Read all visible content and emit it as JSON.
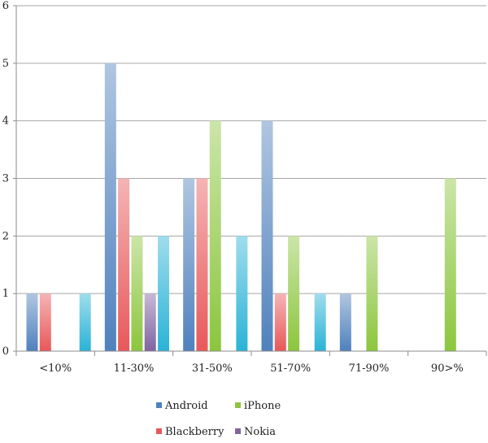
{
  "chart_data": {
    "type": "bar",
    "title": "",
    "xlabel": "",
    "ylabel": "",
    "ylim": [
      0,
      6
    ],
    "yticks": [
      0,
      1,
      2,
      3,
      4,
      5,
      6
    ],
    "grid": true,
    "legend_position": "bottom",
    "categories": [
      "<10%",
      "11-30%",
      "31-50%",
      "51-70%",
      "71-90%",
      "90>%"
    ],
    "series": [
      {
        "name": "Android",
        "color": "#4f81bd",
        "values": [
          1,
          5,
          3,
          4,
          1,
          0
        ]
      },
      {
        "name": "Blackberry",
        "color": "#e8585a",
        "values": [
          1,
          3,
          3,
          1,
          0,
          0
        ]
      },
      {
        "name": "iPhone",
        "color": "#8cc63e",
        "values": [
          0,
          2,
          4,
          2,
          2,
          3
        ]
      },
      {
        "name": "Nokia",
        "color": "#8064a2",
        "values": [
          0,
          1,
          0,
          0,
          0,
          0
        ]
      },
      {
        "name": "",
        "color": "#2ab3d6",
        "values": [
          1,
          2,
          2,
          1,
          0,
          0
        ]
      }
    ],
    "legend": [
      {
        "series": 0,
        "label": "Android"
      },
      {
        "series": 2,
        "label": "iPhone"
      },
      {
        "series": 1,
        "label": "Blackberry"
      },
      {
        "series": 3,
        "label": "Nokia"
      }
    ]
  }
}
